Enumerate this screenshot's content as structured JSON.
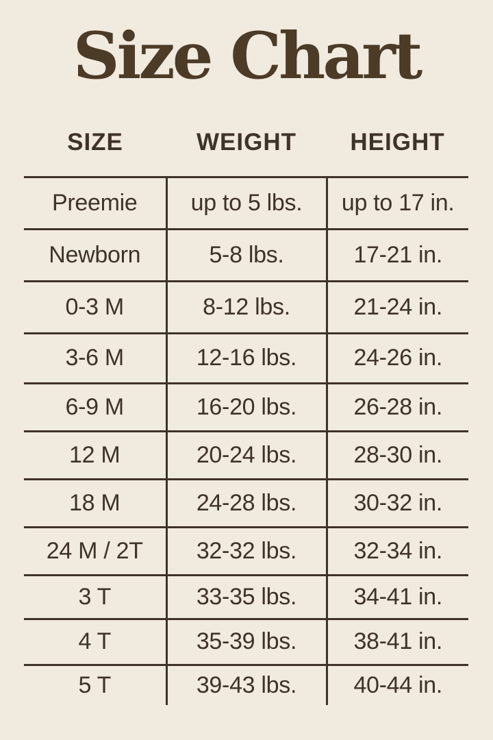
{
  "page": {
    "title": "Size Chart",
    "background_color": "#f1eade",
    "text_color": "#3e3327",
    "title_color": "#4b3b27",
    "rule_color": "#3e3327"
  },
  "chart_data": {
    "type": "table",
    "title": "Size Chart",
    "columns": [
      "SIZE",
      "WEIGHT",
      "HEIGHT"
    ],
    "rows": [
      {
        "size": "Preemie",
        "weight": "up to 5 lbs.",
        "height": "up to 17 in."
      },
      {
        "size": "Newborn",
        "weight": "5-8 lbs.",
        "height": "17-21 in."
      },
      {
        "size": "0-3 M",
        "weight": "8-12 lbs.",
        "height": "21-24 in."
      },
      {
        "size": "3-6 M",
        "weight": "12-16 lbs.",
        "height": "24-26 in."
      },
      {
        "size": "6-9 M",
        "weight": "16-20 lbs.",
        "height": "26-28 in."
      },
      {
        "size": "12 M",
        "weight": "20-24 lbs.",
        "height": "28-30 in."
      },
      {
        "size": "18 M",
        "weight": "24-28 lbs.",
        "height": "30-32 in."
      },
      {
        "size": "24 M / 2T",
        "weight": "32-32 lbs.",
        "height": "32-34 in."
      },
      {
        "size": "3 T",
        "weight": "33-35 lbs.",
        "height": "34-41 in."
      },
      {
        "size": "4 T",
        "weight": "35-39 lbs.",
        "height": "38-41 in."
      },
      {
        "size": "5 T",
        "weight": "39-43 lbs.",
        "height": "40-44 in."
      }
    ],
    "layout": {
      "grid": "internal vertical dividers and horizontal row separators only",
      "outer_border": false,
      "bottom_border": false,
      "legend_position": "none"
    }
  }
}
